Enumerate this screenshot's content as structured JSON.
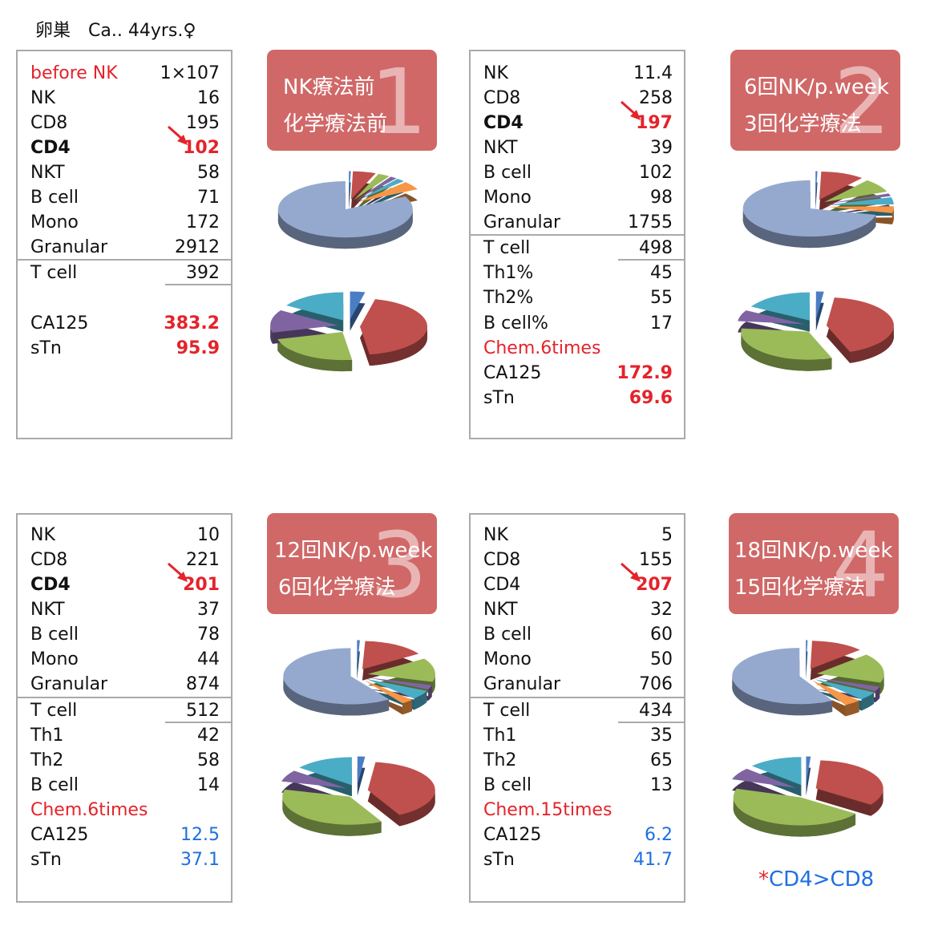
{
  "title": "卵巣　Ca.. 44yrs.♀",
  "footnote": {
    "star": "*",
    "text": "CD4>CD8"
  },
  "callouts": [
    {
      "line1": "NK療法前",
      "line2": "化学療法前",
      "num": "1"
    },
    {
      "line1": "6回NK/p.week",
      "line2": "3回化学療法",
      "num": "2"
    },
    {
      "line1": "12回NK/p.week",
      "line2": "6回化学療法",
      "num": "3"
    },
    {
      "line1": "18回NK/p.week",
      "line2": "15回化学療法",
      "num": "4"
    }
  ],
  "panels": [
    {
      "rows": [
        {
          "label": "before NK",
          "value": "1×107"
        },
        {
          "label": "NK",
          "value": "16"
        },
        {
          "label": "CD8",
          "value": "195"
        },
        {
          "label": "CD4",
          "value": "102"
        },
        {
          "label": "NKT",
          "value": "58"
        },
        {
          "label": "B cell",
          "value": "71"
        },
        {
          "label": "Mono",
          "value": "172"
        },
        {
          "label": "Granular",
          "value": "2912"
        },
        {
          "label": "T cell",
          "value": "392"
        },
        {
          "label": "CA125",
          "value": "383.2"
        },
        {
          "label": "sTn",
          "value": "95.9"
        }
      ]
    },
    {
      "rows": [
        {
          "label": "NK",
          "value": "11.4"
        },
        {
          "label": "CD8",
          "value": "258"
        },
        {
          "label": "CD4",
          "value": "197"
        },
        {
          "label": "NKT",
          "value": "39"
        },
        {
          "label": "B cell",
          "value": "102"
        },
        {
          "label": "Mono",
          "value": "98"
        },
        {
          "label": "Granular",
          "value": "1755"
        },
        {
          "label": "T cell",
          "value": "498"
        },
        {
          "label": "Th1%",
          "value": "45"
        },
        {
          "label": "Th2%",
          "value": "55"
        },
        {
          "label": "B cell%",
          "value": "17"
        },
        {
          "label": "Chem.6times",
          "value": ""
        },
        {
          "label": "CA125",
          "value": "172.9"
        },
        {
          "label": "sTn",
          "value": "69.6"
        }
      ]
    },
    {
      "rows": [
        {
          "label": "NK",
          "value": "10"
        },
        {
          "label": "CD8",
          "value": "221"
        },
        {
          "label": "CD4",
          "value": "201"
        },
        {
          "label": "NKT",
          "value": "37"
        },
        {
          "label": "B cell",
          "value": "78"
        },
        {
          "label": "Mono",
          "value": "44"
        },
        {
          "label": "Granular",
          "value": "874"
        },
        {
          "label": "T cell",
          "value": "512"
        },
        {
          "label": "Th1",
          "value": "42"
        },
        {
          "label": "Th2",
          "value": "58"
        },
        {
          "label": "B cell",
          "value": "14"
        },
        {
          "label": "Chem.6times",
          "value": ""
        },
        {
          "label": "CA125",
          "value": "12.5"
        },
        {
          "label": "sTn",
          "value": "37.1"
        }
      ]
    },
    {
      "rows": [
        {
          "label": "NK",
          "value": "5"
        },
        {
          "label": "CD8",
          "value": "155"
        },
        {
          "label": "CD4",
          "value": "207"
        },
        {
          "label": "NKT",
          "value": "32"
        },
        {
          "label": "B cell",
          "value": "60"
        },
        {
          "label": "Mono",
          "value": "50"
        },
        {
          "label": "Granular",
          "value": "706"
        },
        {
          "label": "T cell",
          "value": "434"
        },
        {
          "label": "Th1",
          "value": "35"
        },
        {
          "label": "Th2",
          "value": "65"
        },
        {
          "label": "B cell",
          "value": "13"
        },
        {
          "label": "Chem.15times",
          "value": ""
        },
        {
          "label": "CA125",
          "value": "6.2"
        },
        {
          "label": "sTn",
          "value": "41.7"
        }
      ]
    }
  ],
  "colors": {
    "red_text": "#e4232b",
    "blue_text": "#1f6fe0",
    "callout_bg": "#d06868",
    "slice_palette": [
      "#4a7ec4",
      "#c0504d",
      "#9bbb59",
      "#8064a2",
      "#4bacc6",
      "#f79646"
    ],
    "large_slice": "#95a9cf"
  },
  "chart_data": [
    {
      "type": "pie",
      "panel": "1",
      "part": "leukocyte",
      "categories": [
        "NK",
        "CD8",
        "CD4",
        "NKT",
        "B cell",
        "Mono",
        "Granular"
      ],
      "values": [
        16,
        195,
        102,
        58,
        71,
        172,
        2912
      ]
    },
    {
      "type": "pie",
      "panel": "1",
      "part": "lymphocyte",
      "categories": [
        "NK",
        "CD8",
        "CD4",
        "NKT",
        "B cell"
      ],
      "values": [
        16,
        195,
        102,
        58,
        71
      ]
    },
    {
      "type": "pie",
      "panel": "2",
      "part": "leukocyte",
      "categories": [
        "NK",
        "CD8",
        "CD4",
        "NKT",
        "B cell",
        "Mono",
        "Granular"
      ],
      "values": [
        11.4,
        258,
        197,
        39,
        102,
        98,
        1755
      ]
    },
    {
      "type": "pie",
      "panel": "2",
      "part": "lymphocyte",
      "categories": [
        "NK",
        "CD8",
        "CD4",
        "NKT",
        "B cell"
      ],
      "values": [
        11.4,
        258,
        197,
        39,
        102
      ]
    },
    {
      "type": "pie",
      "panel": "3",
      "part": "leukocyte",
      "categories": [
        "NK",
        "CD8",
        "CD4",
        "NKT",
        "B cell",
        "Mono",
        "Granular"
      ],
      "values": [
        10,
        221,
        201,
        37,
        78,
        44,
        874
      ]
    },
    {
      "type": "pie",
      "panel": "3",
      "part": "lymphocyte",
      "categories": [
        "NK",
        "CD8",
        "CD4",
        "NKT",
        "B cell"
      ],
      "values": [
        10,
        221,
        201,
        37,
        78
      ]
    },
    {
      "type": "pie",
      "panel": "4",
      "part": "leukocyte",
      "categories": [
        "NK",
        "CD8",
        "CD4",
        "NKT",
        "B cell",
        "Mono",
        "Granular"
      ],
      "values": [
        5,
        155,
        207,
        32,
        60,
        50,
        706
      ]
    },
    {
      "type": "pie",
      "panel": "4",
      "part": "lymphocyte",
      "categories": [
        "NK",
        "CD8",
        "CD4",
        "NKT",
        "B cell"
      ],
      "values": [
        5,
        155,
        207,
        32,
        60
      ]
    }
  ]
}
